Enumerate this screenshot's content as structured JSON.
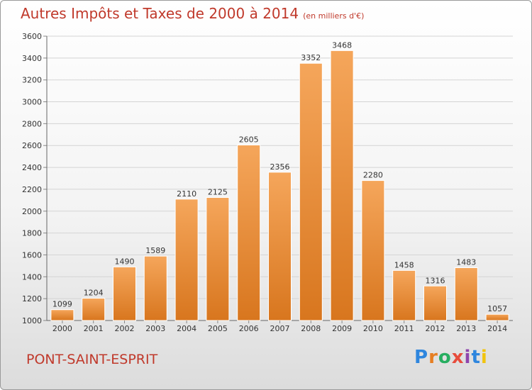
{
  "title": {
    "main": "Autres Impôts et Taxes de 2000 à 2014",
    "unit": "(en milliers d'€)"
  },
  "city": "PONT-SAINT-ESPRIT",
  "logo": {
    "text": "Proxiti",
    "colors": [
      "#2e86de",
      "#e67e22",
      "#27ae60",
      "#e74c3c",
      "#8e44ad",
      "#2e86de",
      "#f1c40f"
    ]
  },
  "colors": {
    "bar_top": "#f5a65b",
    "bar_bottom": "#d8761e",
    "grid": "#d4d4d4",
    "title": "#c0392b"
  },
  "chart_data": {
    "type": "bar",
    "categories": [
      "2000",
      "2001",
      "2002",
      "2003",
      "2004",
      "2005",
      "2006",
      "2007",
      "2008",
      "2009",
      "2010",
      "2011",
      "2012",
      "2013",
      "2014"
    ],
    "values": [
      1099,
      1204,
      1490,
      1589,
      2110,
      2125,
      2605,
      2356,
      3352,
      3468,
      2280,
      1458,
      1316,
      1483,
      1057
    ],
    "ylim": [
      1000,
      3600
    ],
    "yticks": [
      1000,
      1200,
      1400,
      1600,
      1800,
      2000,
      2200,
      2400,
      2600,
      2800,
      3000,
      3200,
      3400,
      3600
    ],
    "grid": true,
    "title": "Autres Impôts et Taxes de 2000 à 2014",
    "xlabel": "",
    "ylabel": ""
  }
}
